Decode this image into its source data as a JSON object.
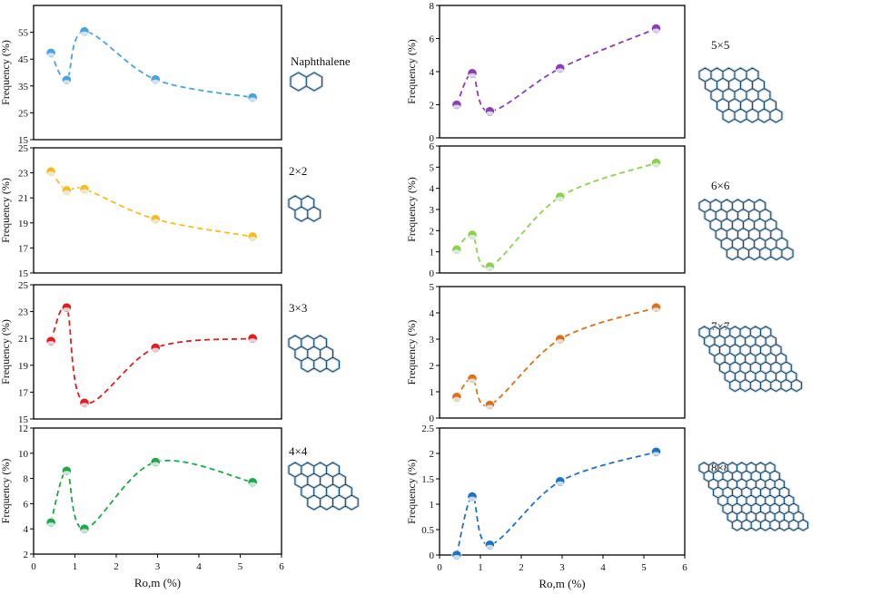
{
  "chart_data": [
    {
      "type": "line",
      "title": "",
      "molecule": "Naphthalene",
      "hex_n": 2,
      "color": "#4aa3df",
      "x": [
        0.42,
        0.8,
        1.23,
        2.95,
        5.3
      ],
      "values": [
        47.3,
        37.2,
        55.3,
        37.4,
        30.7
      ],
      "ylim": [
        15,
        65
      ],
      "yticks": [
        15,
        25,
        35,
        45,
        55
      ],
      "ytick_labels": [
        "15",
        "25",
        "35",
        "45",
        "55"
      ],
      "ylabel": "Frequency (%)",
      "xlabel": "",
      "xlim": [
        0,
        6
      ],
      "xticks": []
    },
    {
      "type": "line",
      "title": "",
      "molecule": "2×2",
      "hex_n": 2,
      "color": "#f5bd1f",
      "x": [
        0.42,
        0.8,
        1.23,
        2.95,
        5.3
      ],
      "values": [
        23.1,
        21.6,
        21.7,
        19.3,
        17.9
      ],
      "ylim": [
        15,
        25
      ],
      "yticks": [
        15,
        17,
        19,
        21,
        23,
        25
      ],
      "ytick_labels": [
        "15",
        "17",
        "19",
        "21",
        "23",
        "25"
      ],
      "ylabel": "Frequency (%)",
      "xlabel": "",
      "xlim": [
        0,
        6
      ],
      "xticks": []
    },
    {
      "type": "line",
      "title": "",
      "molecule": "3×3",
      "hex_n": 3,
      "color": "#e02020",
      "x": [
        0.42,
        0.8,
        1.23,
        2.95,
        5.3
      ],
      "values": [
        20.8,
        23.3,
        16.2,
        20.3,
        21.0
      ],
      "ylim": [
        15,
        25
      ],
      "yticks": [
        15,
        17,
        19,
        21,
        23,
        25
      ],
      "ytick_labels": [
        "15",
        "17",
        "19",
        "21",
        "23",
        "25"
      ],
      "ylabel": "Frequency (%)",
      "xlabel": "",
      "xlim": [
        0,
        6
      ],
      "xticks": []
    },
    {
      "type": "line",
      "title": "",
      "molecule": "4×4",
      "hex_n": 4,
      "color": "#1fa84a",
      "x": [
        0.42,
        0.8,
        1.23,
        2.95,
        5.3
      ],
      "values": [
        4.5,
        8.6,
        4.0,
        9.3,
        7.7
      ],
      "ylim": [
        2,
        12
      ],
      "yticks": [
        2,
        4,
        6,
        8,
        10,
        12
      ],
      "ytick_labels": [
        "2",
        "4",
        "6",
        "8",
        "10",
        "12"
      ],
      "ylabel": "Frequency (%)",
      "xlabel": "Ro,m (%)",
      "xlim": [
        0,
        6
      ],
      "xticks": [
        0,
        1,
        2,
        3,
        4,
        5,
        6
      ],
      "xtick_labels": [
        "0",
        "1",
        "2",
        "3",
        "4",
        "5",
        "6"
      ]
    },
    {
      "type": "line",
      "title": "",
      "molecule": "5×5",
      "hex_n": 5,
      "color": "#8a3fb3",
      "x": [
        0.42,
        0.8,
        1.23,
        2.95,
        5.3
      ],
      "values": [
        2.0,
        3.9,
        1.6,
        4.2,
        6.6
      ],
      "ylim": [
        0,
        8
      ],
      "yticks": [
        0,
        2,
        4,
        6,
        8
      ],
      "ytick_labels": [
        "0",
        "2",
        "4",
        "6",
        "8"
      ],
      "ylabel": "Frequency (%)",
      "xlabel": "",
      "xlim": [
        0,
        6
      ],
      "xticks": []
    },
    {
      "type": "line",
      "title": "",
      "molecule": "6×6",
      "hex_n": 6,
      "color": "#8fd14f",
      "x": [
        0.42,
        0.8,
        1.23,
        2.95,
        5.3
      ],
      "values": [
        1.1,
        1.8,
        0.3,
        3.6,
        5.2
      ],
      "ylim": [
        0,
        6
      ],
      "yticks": [
        0,
        1,
        2,
        3,
        4,
        5,
        6
      ],
      "ytick_labels": [
        "0",
        "1",
        "2",
        "3",
        "4",
        "5",
        "6"
      ],
      "ylabel": "Frequency (%)",
      "xlabel": "",
      "xlim": [
        0,
        6
      ],
      "xticks": []
    },
    {
      "type": "line",
      "title": "",
      "molecule": "7×7",
      "hex_n": 7,
      "color": "#d9731a",
      "x": [
        0.42,
        0.8,
        1.23,
        2.95,
        5.3
      ],
      "values": [
        0.8,
        1.5,
        0.5,
        3.0,
        4.2
      ],
      "ylim": [
        0,
        5
      ],
      "yticks": [
        0,
        1,
        2,
        3,
        4,
        5
      ],
      "ytick_labels": [
        "0",
        "1",
        "2",
        "3",
        "4",
        "5"
      ],
      "ylabel": "Frequency (%)",
      "xlabel": "",
      "xlim": [
        0,
        6
      ],
      "xticks": []
    },
    {
      "type": "line",
      "title": "",
      "molecule": "8×8",
      "hex_n": 8,
      "color": "#1f72c4",
      "x": [
        0.42,
        0.8,
        1.23,
        2.95,
        5.3
      ],
      "values": [
        0.0,
        1.15,
        0.2,
        1.45,
        2.03
      ],
      "ylim": [
        0,
        2.5
      ],
      "yticks": [
        0,
        0.5,
        1,
        1.5,
        2,
        2.5
      ],
      "ytick_labels": [
        "0",
        "0.5",
        "1",
        "1.5",
        "2",
        "2.5"
      ],
      "ylabel": "Frequency (%)",
      "xlabel": "Ro,m (%)",
      "xlim": [
        0,
        6
      ],
      "xticks": [
        0,
        1,
        2,
        3,
        4,
        5,
        6
      ],
      "xtick_labels": [
        "0",
        "1",
        "2",
        "3",
        "4",
        "5",
        "6"
      ]
    }
  ]
}
